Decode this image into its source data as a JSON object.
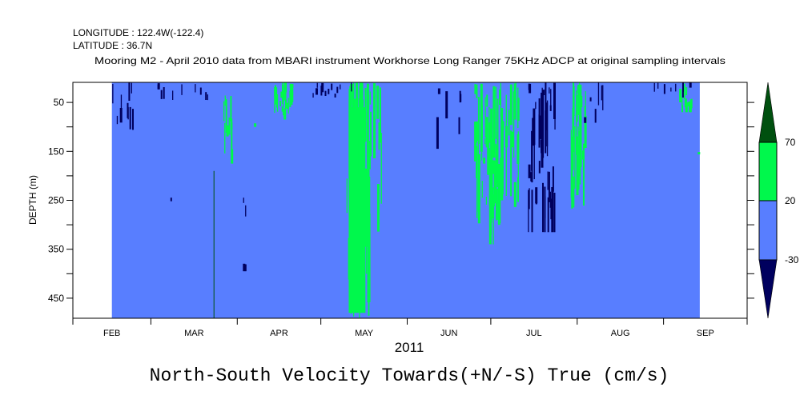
{
  "header": {
    "longitude": "LONGITUDE : 122.4W(-122.4)",
    "latitude": "LATITUDE : 36.7N",
    "subtitle": "Mooring M2 - April 2010 data from MBARI instrument Workhorse Long Ranger 75KHz ADCP at original sampling intervals"
  },
  "chart_data": {
    "type": "heatmap",
    "title": "North-South Velocity Towards(+N/-S) True (cm/s)",
    "xlabel": "2011",
    "ylabel": "DEPTH (m)",
    "x_axis": {
      "unit": "days since Feb 1 2011",
      "range": [
        0,
        242
      ],
      "month_ticks": [
        0,
        28,
        59,
        89,
        120,
        150,
        181,
        212,
        242
      ],
      "month_labels": [
        "FEB",
        "MAR",
        "APR",
        "MAY",
        "JUN",
        "JUL",
        "AUG",
        "SEP"
      ]
    },
    "y_axis": {
      "range": [
        9,
        491
      ],
      "inverted": true,
      "tick_labels": [
        "50",
        "150",
        "250",
        "350",
        "450"
      ],
      "major_ticks": [
        50,
        150,
        250,
        350,
        450
      ],
      "minor_ticks": [
        100,
        200,
        300,
        400
      ]
    },
    "data_extent_days": [
      14,
      225
    ],
    "colorbar": {
      "levels": [
        "70",
        "20",
        "-30"
      ],
      "bins": [
        {
          "range": "> 70",
          "color": "#00500f"
        },
        {
          "range": "20 to 70",
          "color": "#00f84c"
        },
        {
          "range": "-30 to 20",
          "color": "#587eff"
        },
        {
          "range": "< -30",
          "color": "#00005e"
        }
      ]
    },
    "background_category": 2,
    "features": [
      {
        "days": [
          99,
          105
        ],
        "depth": [
          60,
          480
        ],
        "cat": 1,
        "solid": true
      },
      {
        "days": [
          98,
          106
        ],
        "depth": [
          9,
          491
        ],
        "cat": 1,
        "n": 70
      },
      {
        "days": [
          105,
          111
        ],
        "depth": [
          9,
          491
        ],
        "cat": 1,
        "n": 14
      },
      {
        "days": [
          72,
          79
        ],
        "depth": [
          9,
          85
        ],
        "cat": 1,
        "n": 30
      },
      {
        "days": [
          54,
          57
        ],
        "depth": [
          30,
          175
        ],
        "cat": 1,
        "n": 10
      },
      {
        "days": [
          64,
          65
        ],
        "depth": [
          70,
          100
        ],
        "cat": 1,
        "n": 1
      },
      {
        "days": [
          144,
          152
        ],
        "depth": [
          9,
          340
        ],
        "cat": 1,
        "n": 45
      },
      {
        "days": [
          152,
          160
        ],
        "depth": [
          9,
          300
        ],
        "cat": 1,
        "n": 30
      },
      {
        "days": [
          178,
          184
        ],
        "depth": [
          9,
          330
        ],
        "cat": 1,
        "n": 28
      },
      {
        "days": [
          217,
          222
        ],
        "depth": [
          9,
          70
        ],
        "cat": 1,
        "n": 12
      },
      {
        "days": [
          224,
          225
        ],
        "depth": [
          140,
          155
        ],
        "cat": 1,
        "n": 1
      },
      {
        "days": [
          163,
          173
        ],
        "depth": [
          9,
          315
        ],
        "cat": 3,
        "n": 45
      },
      {
        "days": [
          183,
          190
        ],
        "depth": [
          9,
          130
        ],
        "cat": 3,
        "n": 6
      },
      {
        "days": [
          14,
          22
        ],
        "depth": [
          9,
          110
        ],
        "cat": 3,
        "n": 10
      },
      {
        "days": [
          30,
          52
        ],
        "depth": [
          9,
          45
        ],
        "cat": 3,
        "n": 10
      },
      {
        "days": [
          86,
          100
        ],
        "depth": [
          9,
          40
        ],
        "cat": 3,
        "n": 12
      },
      {
        "days": [
          130,
          140
        ],
        "depth": [
          9,
          150
        ],
        "cat": 3,
        "n": 6
      },
      {
        "days": [
          208,
          222
        ],
        "depth": [
          9,
          40
        ],
        "cat": 3,
        "n": 8
      },
      {
        "days": [
          34,
          35
        ],
        "depth": [
          240,
          252
        ],
        "cat": 3,
        "n": 1
      },
      {
        "days": [
          61,
          62
        ],
        "depth": [
          240,
          290
        ],
        "cat": 3,
        "n": 2
      },
      {
        "days": [
          61,
          62
        ],
        "depth": [
          340,
          395
        ],
        "cat": 3,
        "n": 2
      },
      {
        "days": [
          50.5,
          50.7
        ],
        "depth": [
          190,
          491
        ],
        "cat": 0,
        "line": true
      }
    ]
  }
}
